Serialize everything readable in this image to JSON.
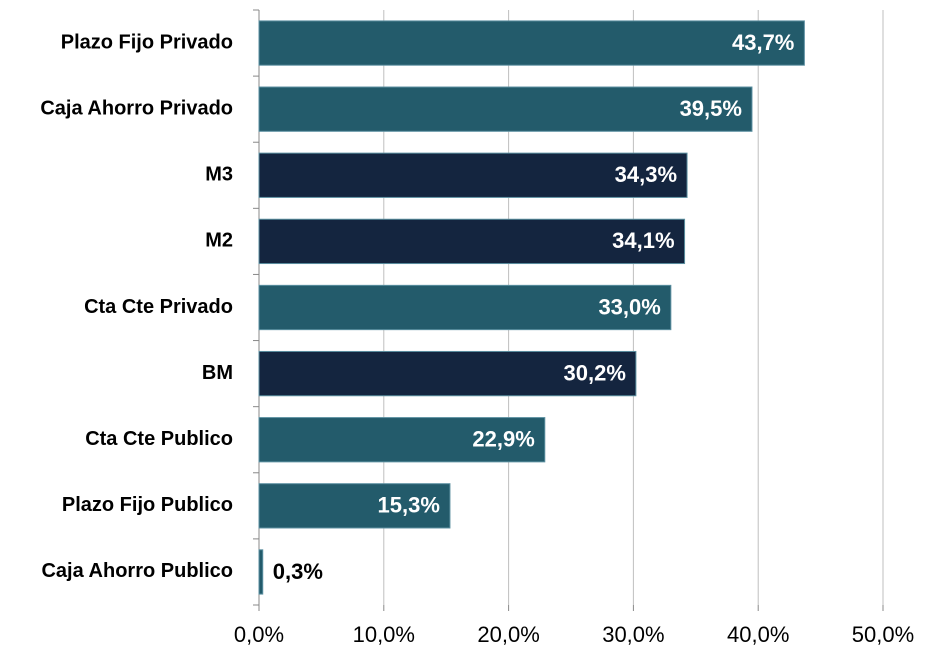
{
  "chart_data": {
    "type": "barh",
    "categories": [
      "Plazo Fijo Privado",
      "Caja Ahorro Privado",
      "M3",
      "M2",
      "Cta Cte Privado",
      "BM",
      "Cta Cte Publico",
      "Plazo Fijo Publico",
      "Caja Ahorro Publico"
    ],
    "values": [
      43.7,
      39.5,
      34.3,
      34.1,
      33.0,
      30.2,
      22.9,
      15.3,
      0.3
    ],
    "value_labels": [
      "43,7%",
      "39,5%",
      "34,3%",
      "34,1%",
      "33,0%",
      "30,2%",
      "22,9%",
      "15,3%",
      "0,3%"
    ],
    "colors": [
      "#235b6b",
      "#235b6b",
      "#14253f",
      "#14253f",
      "#235b6b",
      "#14253f",
      "#235b6b",
      "#235b6b",
      "#235b6b"
    ],
    "xlim": [
      0,
      50
    ],
    "xticks": [
      {
        "value": 0,
        "label": "0,0%"
      },
      {
        "value": 10,
        "label": "10,0%"
      },
      {
        "value": 20,
        "label": "20,0%"
      },
      {
        "value": 30,
        "label": "30,0%"
      },
      {
        "value": 40,
        "label": "40,0%"
      },
      {
        "value": 50,
        "label": "50,0%"
      }
    ],
    "grid": true
  }
}
